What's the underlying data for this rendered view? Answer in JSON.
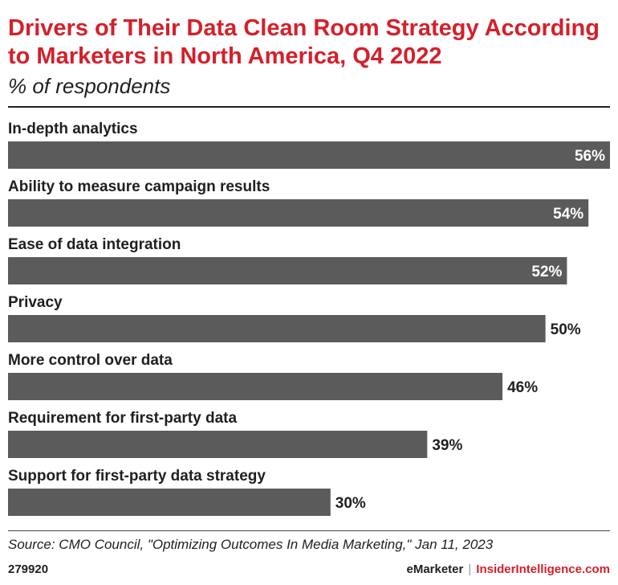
{
  "header": {
    "title": "Drivers of Their Data Clean Room Strategy According to Marketers in North America, Q4 2022",
    "subtitle": "% of respondents"
  },
  "colors": {
    "title": "#d4202b",
    "bar": "#5b5b5b",
    "text": "#1f1f1f"
  },
  "chart_data": {
    "type": "bar",
    "orientation": "horizontal",
    "title": "Drivers of Their Data Clean Room Strategy According to Marketers in North America, Q4 2022",
    "subtitle": "% of respondents",
    "categories": [
      "In-depth analytics",
      "Ability to measure campaign results",
      "Ease of data integration",
      "Privacy",
      "More control over data",
      "Requirement for first-party data",
      "Support for first-party data strategy"
    ],
    "values": [
      56,
      54,
      52,
      50,
      46,
      39,
      30
    ],
    "value_labels": [
      "56%",
      "54%",
      "52%",
      "50%",
      "46%",
      "39%",
      "30%"
    ],
    "xlim": [
      0,
      56
    ],
    "grid": false
  },
  "footer": {
    "source": "Source: CMO Council, \"Optimizing Outcomes In Media Marketing,\" Jan 11, 2023",
    "chart_id": "279920",
    "brand_left": "eMarketer",
    "separator": "|",
    "brand_right": "InsiderIntelligence.com"
  }
}
